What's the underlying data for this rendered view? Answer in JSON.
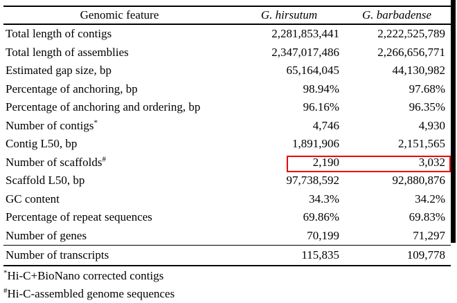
{
  "table": {
    "columns": {
      "feature": "Genomic feature",
      "species1": "G. hirsutum",
      "species2": "G. barbadense"
    },
    "rows": [
      {
        "feature": "Total length of contigs",
        "sup": "",
        "hirsutum": "2,281,853,441",
        "barbadense": "2,222,525,789"
      },
      {
        "feature": "Total length of assemblies",
        "sup": "",
        "hirsutum": "2,347,017,486",
        "barbadense": "2,266,656,771"
      },
      {
        "feature": "Estimated gap size, bp",
        "sup": "",
        "hirsutum": "65,164,045",
        "barbadense": "44,130,982"
      },
      {
        "feature": "Percentage of anchoring, bp",
        "sup": "",
        "hirsutum": "98.94%",
        "barbadense": "97.68%"
      },
      {
        "feature": "Percentage of anchoring and ordering, bp",
        "sup": "",
        "hirsutum": "96.16%",
        "barbadense": "96.35%"
      },
      {
        "feature": "Number of contigs",
        "sup": "*",
        "hirsutum": "4,746",
        "barbadense": "4,930"
      },
      {
        "feature": "Contig L50, bp",
        "sup": "",
        "hirsutum": "1,891,906",
        "barbadense": "2,151,565"
      },
      {
        "feature": "Number of scaffolds",
        "sup": "#",
        "hirsutum": "2,190",
        "barbadense": "3,032",
        "highlighted": true
      },
      {
        "feature": "Scaffold L50, bp",
        "sup": "",
        "hirsutum": "97,738,592",
        "barbadense": "92,880,876"
      },
      {
        "feature": "GC content",
        "sup": "",
        "hirsutum": "34.3%",
        "barbadense": "34.2%"
      },
      {
        "feature": "Percentage of repeat sequences",
        "sup": "",
        "hirsutum": "69.86%",
        "barbadense": "69.83%"
      },
      {
        "feature": "Number of genes",
        "sup": "",
        "hirsutum": "70,199",
        "barbadense": "71,297"
      },
      {
        "feature": "Number of transcripts",
        "sup": "",
        "hirsutum": "115,835",
        "barbadense": "109,778"
      }
    ],
    "footnotes": [
      {
        "marker": "*",
        "text": "Hi-C+BioNano corrected contigs"
      },
      {
        "marker": "#",
        "text": "Hi-C-assembled genome sequences"
      }
    ],
    "highlight_color": "#ee0000"
  }
}
